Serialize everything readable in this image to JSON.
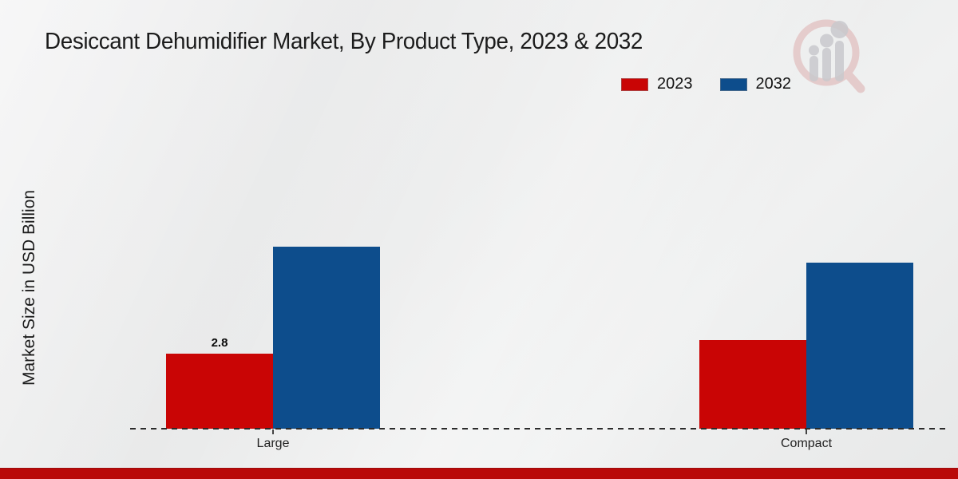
{
  "page": {
    "background_top": "#ededee",
    "background_bottom": "#e7e8e8",
    "bottom_ribbon_color": "#b90909"
  },
  "header": {
    "title": "Desiccant Dehumidifier Market, By Product Type, 2023 & 2032"
  },
  "legend": {
    "items": [
      {
        "label": "2023",
        "color": "#c90505"
      },
      {
        "label": "2032",
        "color": "#0d4d8c"
      }
    ]
  },
  "icons": {
    "watermark": "market-research-future-magnifier-logo"
  },
  "chart_data": {
    "type": "bar",
    "title": "Desiccant Dehumidifier Market, By Product Type, 2023 & 2032",
    "xlabel": "",
    "ylabel": "Market Size in USD Billion",
    "units": "USD Billion",
    "categories": [
      "Large",
      "Compact"
    ],
    "series": [
      {
        "name": "2023",
        "color": "#c90505",
        "values": [
          2.8,
          3.3
        ]
      },
      {
        "name": "2032",
        "color": "#0d4d8c",
        "values": [
          6.8,
          6.2
        ]
      }
    ],
    "bar_value_labels": [
      [
        "2.8",
        ""
      ],
      [
        "",
        ""
      ]
    ],
    "ylim": [
      0,
      7.6
    ],
    "grid": false,
    "legend_position": "top-right",
    "baseline_style": "dashed"
  }
}
